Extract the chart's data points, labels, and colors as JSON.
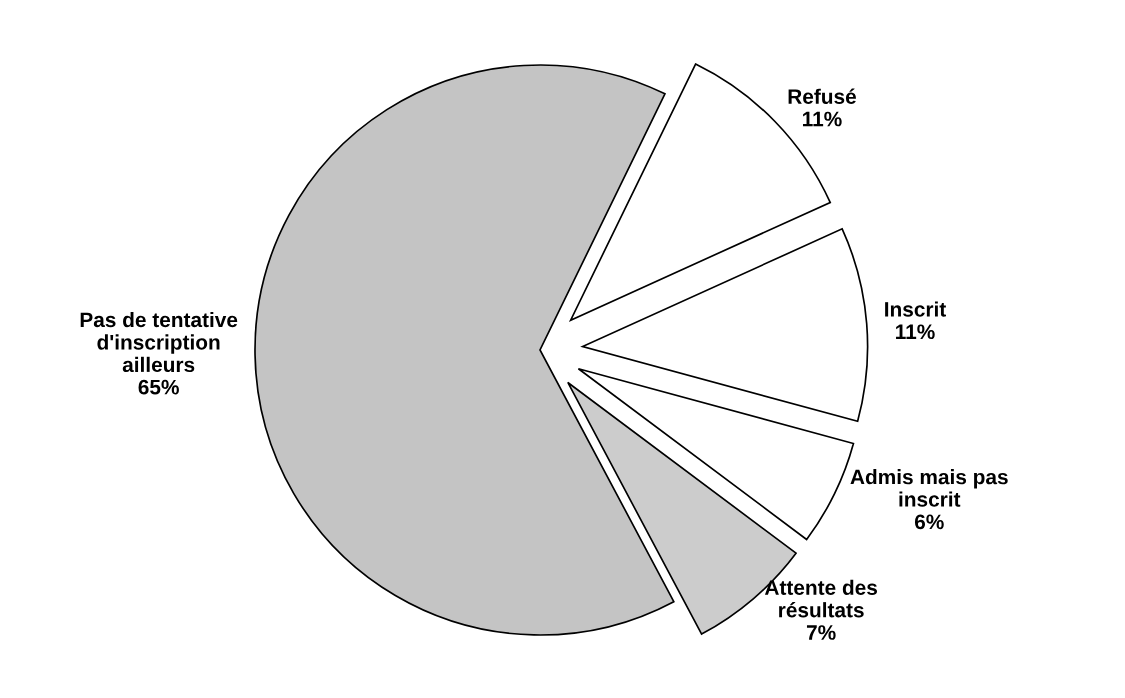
{
  "chart_data": {
    "type": "pie",
    "categories": [
      "Refusé",
      "Inscrit",
      "Admis mais pas\ninscrit",
      "Attente des\nrésultats",
      "Pas de tentative\nd'inscription\nailleurs"
    ],
    "values": [
      11,
      11,
      6,
      7,
      65
    ],
    "colors": [
      "#ffffff",
      "#ffffff",
      "#ffffff",
      "#cccccc",
      "#c4c4c4"
    ],
    "value_labels": [
      "11%",
      "11%",
      "6%",
      "7%",
      "65%"
    ]
  }
}
